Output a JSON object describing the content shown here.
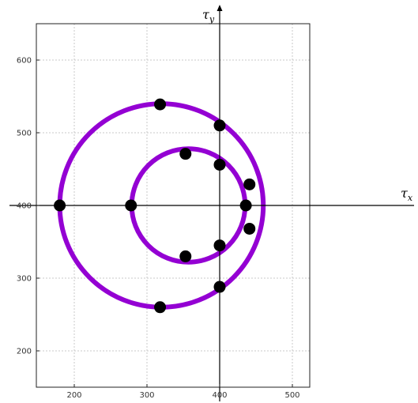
{
  "chart_data": {
    "type": "scatter",
    "xlabel_main": "τ",
    "xlabel_sub": "x",
    "ylabel_main": "τ",
    "ylabel_sub": "y",
    "xlim": [
      150,
      525
    ],
    "ylim": [
      150,
      650
    ],
    "x_ticks": [
      200,
      300,
      400,
      500
    ],
    "y_ticks": [
      200,
      300,
      400,
      500,
      600
    ],
    "x_tick_labels": [
      "200",
      "300",
      "400",
      "500"
    ],
    "y_tick_labels": [
      "200",
      "300",
      "400",
      "500",
      "600"
    ],
    "grid": true,
    "axes_cross_at": [
      400,
      400
    ],
    "circles": [
      {
        "center": [
          320,
          400
        ],
        "radius": 140,
        "color": "#9400d3"
      },
      {
        "center": [
          357,
          400
        ],
        "radius": 78,
        "color": "#9400d3"
      }
    ],
    "points": [
      {
        "x": 318,
        "y": 539
      },
      {
        "x": 400,
        "y": 510
      },
      {
        "x": 353,
        "y": 471
      },
      {
        "x": 400,
        "y": 456
      },
      {
        "x": 441,
        "y": 429
      },
      {
        "x": 180,
        "y": 400
      },
      {
        "x": 278,
        "y": 400
      },
      {
        "x": 436,
        "y": 400
      },
      {
        "x": 441,
        "y": 368
      },
      {
        "x": 400,
        "y": 345
      },
      {
        "x": 353,
        "y": 330
      },
      {
        "x": 400,
        "y": 288
      },
      {
        "x": 318,
        "y": 260
      }
    ],
    "point_color": "#000000"
  }
}
